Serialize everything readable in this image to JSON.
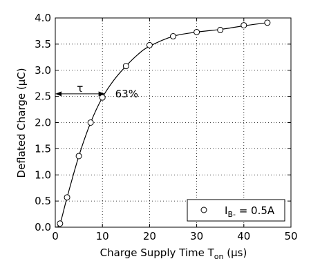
{
  "chart_data": {
    "type": "scatter",
    "title": "",
    "xlabel": {
      "prefix": "Charge Supply Time T",
      "sub": "on",
      "suffix": " (μs)"
    },
    "ylabel": "Deflated Charge (μC)",
    "xlim": [
      0,
      50
    ],
    "ylim": [
      0,
      4
    ],
    "x_ticks": [
      0,
      10,
      20,
      30,
      40,
      50
    ],
    "x_tick_labels": [
      "0",
      "10",
      "20",
      "30",
      "40",
      "50"
    ],
    "y_ticks": [
      0,
      0.5,
      1,
      1.5,
      2,
      2.5,
      3,
      3.5,
      4
    ],
    "y_tick_labels": [
      "0.0",
      "0.5",
      "1.0",
      "1.5",
      "2.0",
      "2.5",
      "3.0",
      "3.5",
      "4.0"
    ],
    "grid": true,
    "legend_position": "bottom-right",
    "series": [
      {
        "name": "I_B- = 0.5A",
        "marker": "open-circle",
        "points": [
          {
            "x": 1,
            "y": 0.07
          },
          {
            "x": 2.5,
            "y": 0.57
          },
          {
            "x": 5,
            "y": 1.36
          },
          {
            "x": 7.5,
            "y": 2.0
          },
          {
            "x": 10,
            "y": 2.48
          },
          {
            "x": 15,
            "y": 3.08
          },
          {
            "x": 20,
            "y": 3.48
          },
          {
            "x": 25,
            "y": 3.65
          },
          {
            "x": 30,
            "y": 3.73
          },
          {
            "x": 35,
            "y": 3.77
          },
          {
            "x": 40,
            "y": 3.86
          },
          {
            "x": 45,
            "y": 3.91
          }
        ]
      }
    ],
    "fit_curve": [
      {
        "x": 0,
        "y": 0.0
      },
      {
        "x": 1,
        "y": 0.07
      },
      {
        "x": 2.5,
        "y": 0.57
      },
      {
        "x": 5,
        "y": 1.36
      },
      {
        "x": 7.5,
        "y": 2.0
      },
      {
        "x": 10,
        "y": 2.48
      },
      {
        "x": 12.5,
        "y": 2.82
      },
      {
        "x": 15,
        "y": 3.08
      },
      {
        "x": 17.5,
        "y": 3.3
      },
      {
        "x": 20,
        "y": 3.46
      },
      {
        "x": 25,
        "y": 3.65
      },
      {
        "x": 30,
        "y": 3.73
      },
      {
        "x": 35,
        "y": 3.78
      },
      {
        "x": 40,
        "y": 3.85
      },
      {
        "x": 45,
        "y": 3.91
      }
    ],
    "annotation": {
      "tau_label": "τ",
      "percent_label": "63%",
      "arrow_x_start": 0,
      "arrow_x_end": 10.5,
      "arrow_y": 2.55
    },
    "legend": {
      "label_main": "I",
      "label_sub": "B-",
      "label_rest": " = 0.5A"
    }
  }
}
